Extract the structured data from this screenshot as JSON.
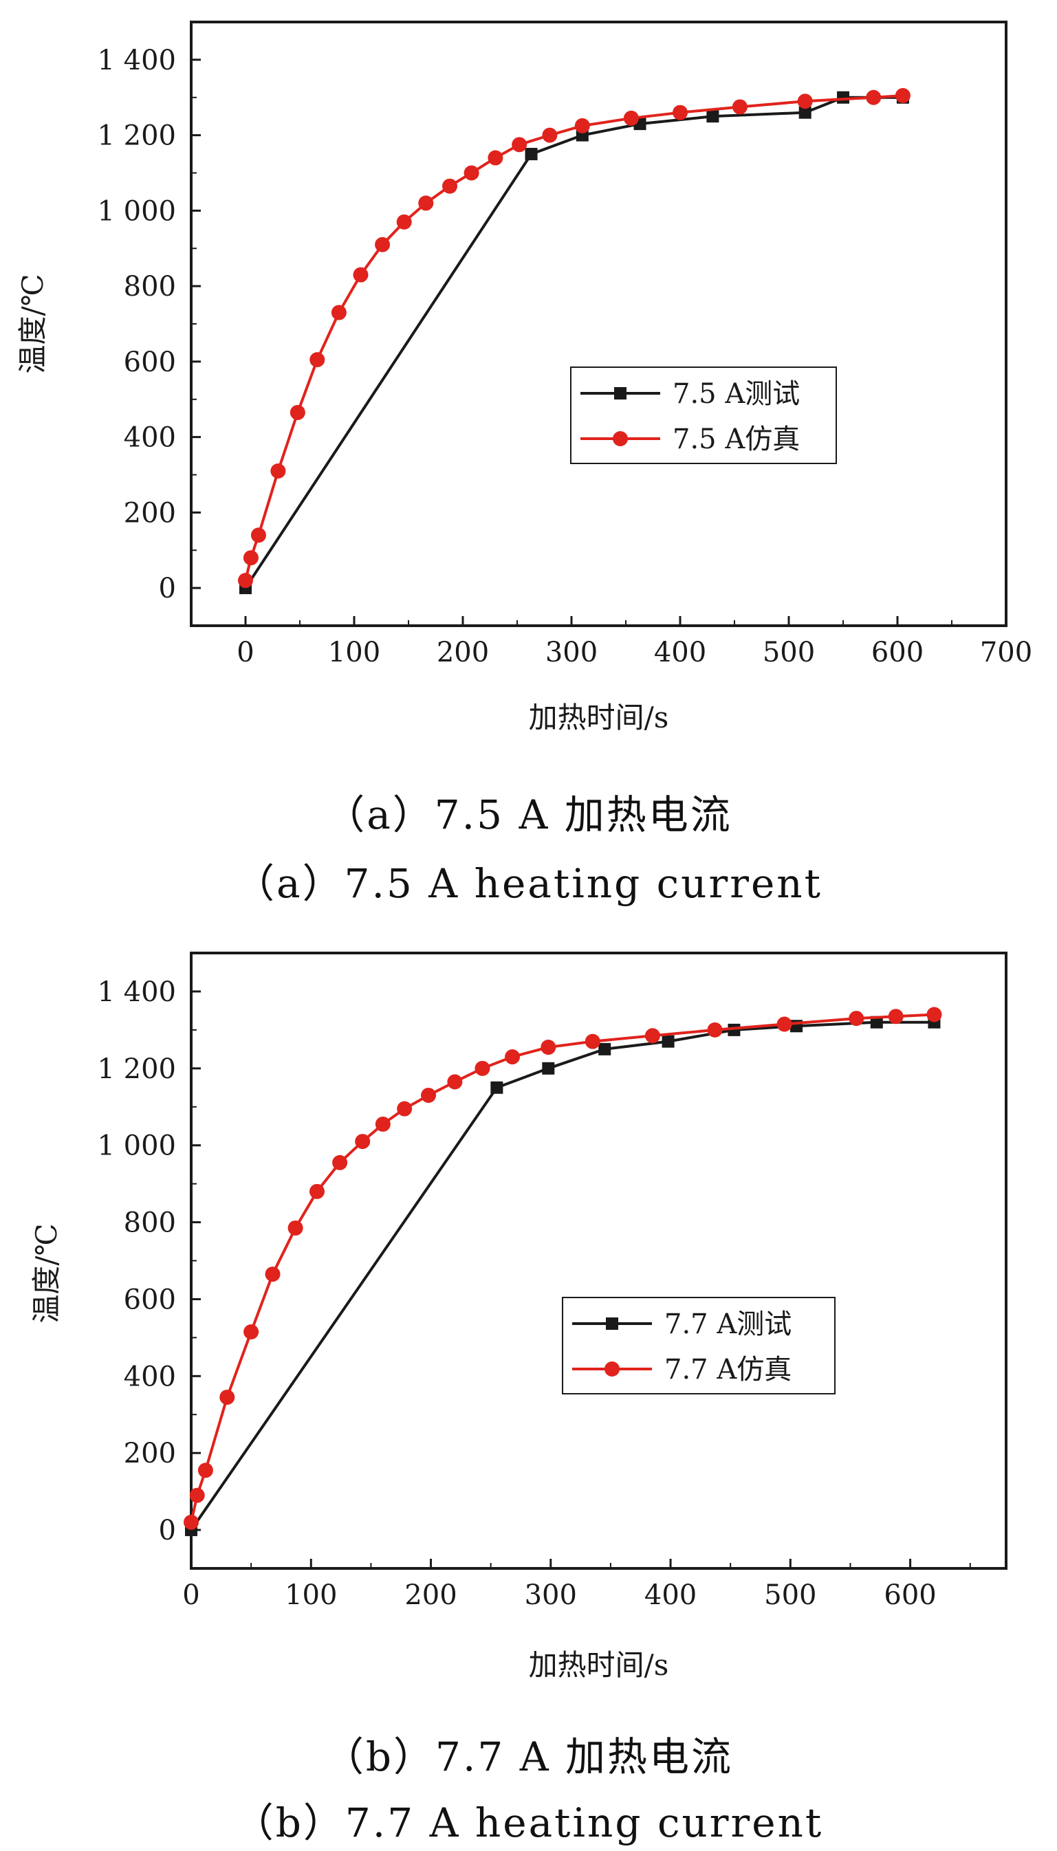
{
  "chart_data": [
    {
      "type": "line",
      "caption_zh": "（a）7.5 A 加热电流",
      "caption_en": "（a）7.5 A heating current",
      "xlabel": "加热时间/s",
      "ylabel": "温度/℃",
      "xlim": [
        -50,
        700
      ],
      "ylim": [
        -100,
        1500
      ],
      "xticks": [
        0,
        100,
        200,
        300,
        400,
        500,
        600,
        700
      ],
      "xtick_labels": [
        "0",
        "100",
        "200",
        "300",
        "400",
        "500",
        "600",
        "700"
      ],
      "yticks": [
        0,
        200,
        400,
        600,
        800,
        1000,
        1200,
        1400
      ],
      "ytick_labels": [
        "0",
        "200",
        "400",
        "600",
        "800",
        "1 000",
        "1 200",
        "1 400"
      ],
      "grid": false,
      "legend_position": "center-right",
      "series": [
        {
          "name": "7.5 A测试",
          "color": "#1a1a1a",
          "marker": "square",
          "x": [
            0,
            263,
            310,
            363,
            430,
            515,
            550,
            605
          ],
          "y": [
            0,
            1150,
            1200,
            1230,
            1250,
            1260,
            1300,
            1300
          ]
        },
        {
          "name": "7.5 A仿真",
          "color": "#e0231c",
          "marker": "circle",
          "x": [
            0,
            5,
            12,
            30,
            48,
            66,
            86,
            106,
            126,
            146,
            166,
            188,
            208,
            230,
            252,
            280,
            310,
            355,
            400,
            455,
            515,
            578,
            605
          ],
          "y": [
            20,
            80,
            140,
            310,
            465,
            605,
            730,
            830,
            910,
            970,
            1020,
            1065,
            1100,
            1140,
            1175,
            1200,
            1225,
            1245,
            1260,
            1275,
            1290,
            1300,
            1305
          ]
        }
      ]
    },
    {
      "type": "line",
      "caption_zh": "（b）7.7 A 加热电流",
      "caption_en": "（b）7.7 A heating current",
      "xlabel": "加热时间/s",
      "ylabel": "温度/℃",
      "xlim": [
        0,
        680
      ],
      "ylim": [
        -100,
        1500
      ],
      "xticks": [
        0,
        100,
        200,
        300,
        400,
        500,
        600
      ],
      "xtick_labels": [
        "0",
        "100",
        "200",
        "300",
        "400",
        "500",
        "600"
      ],
      "yticks": [
        0,
        200,
        400,
        600,
        800,
        1000,
        1200,
        1400
      ],
      "ytick_labels": [
        "0",
        "200",
        "400",
        "600",
        "800",
        "1 000",
        "1 200",
        "1 400"
      ],
      "grid": false,
      "legend_position": "center-right",
      "series": [
        {
          "name": "7.7 A测试",
          "color": "#1a1a1a",
          "marker": "square",
          "x": [
            0,
            255,
            298,
            345,
            398,
            453,
            505,
            572,
            620
          ],
          "y": [
            0,
            1150,
            1200,
            1250,
            1270,
            1300,
            1310,
            1320,
            1320
          ]
        },
        {
          "name": "7.7 A仿真",
          "color": "#e0231c",
          "marker": "circle",
          "x": [
            0,
            5,
            12,
            30,
            50,
            68,
            87,
            105,
            124,
            143,
            160,
            178,
            198,
            220,
            243,
            268,
            298,
            335,
            385,
            437,
            495,
            555,
            588,
            620
          ],
          "y": [
            20,
            90,
            155,
            345,
            515,
            665,
            785,
            880,
            955,
            1010,
            1055,
            1095,
            1130,
            1165,
            1200,
            1230,
            1255,
            1270,
            1285,
            1300,
            1315,
            1330,
            1335,
            1340
          ]
        }
      ]
    }
  ]
}
